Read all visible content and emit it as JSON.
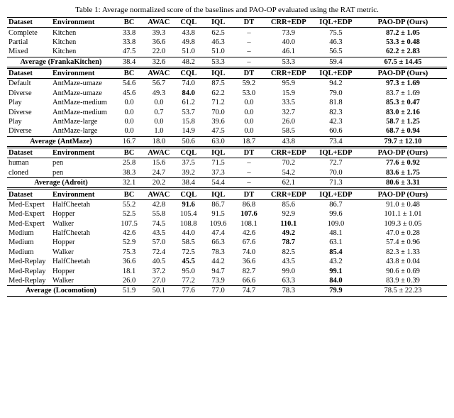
{
  "caption": "Table 1: Average normalized score of the baselines and PAO-OP evaluated using the RAT metric.",
  "headers": [
    "Dataset",
    "Environment",
    "BC",
    "AWAC",
    "CQL",
    "IQL",
    "DT",
    "CRR+EDP",
    "IQL+EDP",
    "PAO-DP (Ours)"
  ],
  "sections": [
    {
      "rows": [
        {
          "cells": [
            {
              "t": "Complete"
            },
            {
              "t": "Kitchen"
            },
            {
              "t": "33.8"
            },
            {
              "t": "39.3"
            },
            {
              "t": "43.8"
            },
            {
              "t": "62.5"
            },
            {
              "t": "–"
            },
            {
              "t": "73.9"
            },
            {
              "t": "75.5"
            },
            {
              "t": "87.2 ± 1.05",
              "b": true
            }
          ]
        },
        {
          "cells": [
            {
              "t": "Partial"
            },
            {
              "t": "Kitchen"
            },
            {
              "t": "33.8"
            },
            {
              "t": "36.6"
            },
            {
              "t": "49.8"
            },
            {
              "t": "46.3"
            },
            {
              "t": "–"
            },
            {
              "t": "40.0"
            },
            {
              "t": "46.3"
            },
            {
              "t": "53.3 ± 0.48",
              "b": true
            }
          ]
        },
        {
          "cells": [
            {
              "t": "Mixed"
            },
            {
              "t": "Kitchen"
            },
            {
              "t": "47.5"
            },
            {
              "t": "22.0"
            },
            {
              "t": "51.0"
            },
            {
              "t": "51.0"
            },
            {
              "t": "–"
            },
            {
              "t": "46.1"
            },
            {
              "t": "56.5"
            },
            {
              "t": "62.2 ± 2.83",
              "b": true
            }
          ]
        }
      ],
      "average": {
        "label": "Average (FrankaKitchen)",
        "cells": [
          {
            "t": "38.4"
          },
          {
            "t": "32.6"
          },
          {
            "t": "48.2"
          },
          {
            "t": "53.3"
          },
          {
            "t": "–"
          },
          {
            "t": "53.3"
          },
          {
            "t": "59.4"
          },
          {
            "t": "67.5 ± 14.45",
            "b": true
          }
        ]
      }
    },
    {
      "rows": [
        {
          "cells": [
            {
              "t": "Default"
            },
            {
              "t": "AntMaze-umaze"
            },
            {
              "t": "54.6"
            },
            {
              "t": "56.7"
            },
            {
              "t": "74.0"
            },
            {
              "t": "87.5"
            },
            {
              "t": "59.2"
            },
            {
              "t": "95.9"
            },
            {
              "t": "94.2"
            },
            {
              "t": "97.3 ± 1.69",
              "b": true
            }
          ]
        },
        {
          "cells": [
            {
              "t": "Diverse"
            },
            {
              "t": "AntMaze-umaze"
            },
            {
              "t": "45.6"
            },
            {
              "t": "49.3"
            },
            {
              "t": "84.0",
              "b": true
            },
            {
              "t": "62.2"
            },
            {
              "t": "53.0"
            },
            {
              "t": "15.9"
            },
            {
              "t": "79.0"
            },
            {
              "t": "83.7 ± 1.69"
            }
          ]
        },
        {
          "cells": [
            {
              "t": "Play"
            },
            {
              "t": "AntMaze-medium"
            },
            {
              "t": "0.0"
            },
            {
              "t": "0.0"
            },
            {
              "t": "61.2"
            },
            {
              "t": "71.2"
            },
            {
              "t": "0.0"
            },
            {
              "t": "33.5"
            },
            {
              "t": "81.8"
            },
            {
              "t": "85.3 ± 0.47",
              "b": true
            }
          ]
        },
        {
          "cells": [
            {
              "t": "Diverse"
            },
            {
              "t": "AntMaze-medium"
            },
            {
              "t": "0.0"
            },
            {
              "t": "0.7"
            },
            {
              "t": "53.7"
            },
            {
              "t": "70.0"
            },
            {
              "t": "0.0"
            },
            {
              "t": "32.7"
            },
            {
              "t": "82.3"
            },
            {
              "t": "83.0 ± 2.16",
              "b": true
            }
          ]
        },
        {
          "cells": [
            {
              "t": "Play"
            },
            {
              "t": "AntMaze-large"
            },
            {
              "t": "0.0"
            },
            {
              "t": "0.0"
            },
            {
              "t": "15.8"
            },
            {
              "t": "39.6"
            },
            {
              "t": "0.0"
            },
            {
              "t": "26.0"
            },
            {
              "t": "42.3"
            },
            {
              "t": "58.7 ± 1.25",
              "b": true
            }
          ]
        },
        {
          "cells": [
            {
              "t": "Diverse"
            },
            {
              "t": "AntMaze-large"
            },
            {
              "t": "0.0"
            },
            {
              "t": "1.0"
            },
            {
              "t": "14.9"
            },
            {
              "t": "47.5"
            },
            {
              "t": "0.0"
            },
            {
              "t": "58.5"
            },
            {
              "t": "60.6"
            },
            {
              "t": "68.7 ± 0.94",
              "b": true
            }
          ]
        }
      ],
      "average": {
        "label": "Average (AntMaze)",
        "cells": [
          {
            "t": "16.7"
          },
          {
            "t": "18.0"
          },
          {
            "t": "50.6"
          },
          {
            "t": "63.0"
          },
          {
            "t": "18.7"
          },
          {
            "t": "43.8"
          },
          {
            "t": "73.4"
          },
          {
            "t": "79.7 ± 12.10",
            "b": true
          }
        ]
      }
    },
    {
      "rows": [
        {
          "cells": [
            {
              "t": "human"
            },
            {
              "t": "pen"
            },
            {
              "t": "25.8"
            },
            {
              "t": "15.6"
            },
            {
              "t": "37.5"
            },
            {
              "t": "71.5"
            },
            {
              "t": "–"
            },
            {
              "t": "70.2"
            },
            {
              "t": "72.7"
            },
            {
              "t": "77.6 ± 0.92",
              "b": true
            }
          ]
        },
        {
          "cells": [
            {
              "t": "cloned"
            },
            {
              "t": "pen"
            },
            {
              "t": "38.3"
            },
            {
              "t": "24.7"
            },
            {
              "t": "39.2"
            },
            {
              "t": "37.3"
            },
            {
              "t": "–"
            },
            {
              "t": "54.2"
            },
            {
              "t": "70.0"
            },
            {
              "t": "83.6 ± 1.75",
              "b": true
            }
          ]
        }
      ],
      "average": {
        "label": "Average (Adroit)",
        "cells": [
          {
            "t": "32.1"
          },
          {
            "t": "20.2"
          },
          {
            "t": "38.4"
          },
          {
            "t": "54.4"
          },
          {
            "t": "–"
          },
          {
            "t": "62.1"
          },
          {
            "t": "71.3"
          },
          {
            "t": "80.6 ± 3.31",
            "b": true
          }
        ]
      }
    },
    {
      "rows": [
        {
          "cells": [
            {
              "t": "Med-Expert"
            },
            {
              "t": "HalfCheetah"
            },
            {
              "t": "55.2"
            },
            {
              "t": "42.8"
            },
            {
              "t": "91.6",
              "b": true
            },
            {
              "t": "86.7"
            },
            {
              "t": "86.8"
            },
            {
              "t": "85.6"
            },
            {
              "t": "86.7"
            },
            {
              "t": "91.0 ± 0.48"
            }
          ]
        },
        {
          "cells": [
            {
              "t": "Med-Expert"
            },
            {
              "t": "Hopper"
            },
            {
              "t": "52.5"
            },
            {
              "t": "55.8"
            },
            {
              "t": "105.4"
            },
            {
              "t": "91.5"
            },
            {
              "t": "107.6",
              "b": true
            },
            {
              "t": "92.9"
            },
            {
              "t": "99.6"
            },
            {
              "t": "101.1 ± 1.01"
            }
          ]
        },
        {
          "cells": [
            {
              "t": "Med-Expert"
            },
            {
              "t": "Walker"
            },
            {
              "t": "107.5"
            },
            {
              "t": "74.5"
            },
            {
              "t": "108.8"
            },
            {
              "t": "109.6"
            },
            {
              "t": "108.1"
            },
            {
              "t": "110.1",
              "b": true
            },
            {
              "t": "109.0"
            },
            {
              "t": "109.3 ± 0.05"
            }
          ]
        },
        {
          "cells": [
            {
              "t": "Medium"
            },
            {
              "t": "HalfCheetah"
            },
            {
              "t": "42.6"
            },
            {
              "t": "43.5"
            },
            {
              "t": "44.0"
            },
            {
              "t": "47.4"
            },
            {
              "t": "42.6"
            },
            {
              "t": "49.2",
              "b": true
            },
            {
              "t": "48.1"
            },
            {
              "t": "47.0 ± 0.28"
            }
          ]
        },
        {
          "cells": [
            {
              "t": "Medium"
            },
            {
              "t": "Hopper"
            },
            {
              "t": "52.9"
            },
            {
              "t": "57.0"
            },
            {
              "t": "58.5"
            },
            {
              "t": "66.3"
            },
            {
              "t": "67.6"
            },
            {
              "t": "78.7",
              "b": true
            },
            {
              "t": "63.1"
            },
            {
              "t": "57.4 ± 0.96"
            }
          ]
        },
        {
          "cells": [
            {
              "t": "Medium"
            },
            {
              "t": "Walker"
            },
            {
              "t": "75.3"
            },
            {
              "t": "72.4"
            },
            {
              "t": "72.5"
            },
            {
              "t": "78.3"
            },
            {
              "t": "74.0"
            },
            {
              "t": "82.5"
            },
            {
              "t": "85.4",
              "b": true
            },
            {
              "t": "82.3 ± 1.33"
            }
          ]
        },
        {
          "cells": [
            {
              "t": "Med-Replay"
            },
            {
              "t": "HalfCheetah"
            },
            {
              "t": "36.6"
            },
            {
              "t": "40.5"
            },
            {
              "t": "45.5",
              "b": true
            },
            {
              "t": "44.2"
            },
            {
              "t": "36.6"
            },
            {
              "t": "43.5"
            },
            {
              "t": "43.2"
            },
            {
              "t": "43.8 ± 0.04"
            }
          ]
        },
        {
          "cells": [
            {
              "t": "Med-Replay"
            },
            {
              "t": "Hopper"
            },
            {
              "t": "18.1"
            },
            {
              "t": "37.2"
            },
            {
              "t": "95.0"
            },
            {
              "t": "94.7"
            },
            {
              "t": "82.7"
            },
            {
              "t": "99.0"
            },
            {
              "t": "99.1",
              "b": true
            },
            {
              "t": "90.6 ± 0.69"
            }
          ]
        },
        {
          "cells": [
            {
              "t": "Med-Replay"
            },
            {
              "t": "Walker"
            },
            {
              "t": "26.0"
            },
            {
              "t": "27.0"
            },
            {
              "t": "77.2"
            },
            {
              "t": "73.9"
            },
            {
              "t": "66.6"
            },
            {
              "t": "63.3"
            },
            {
              "t": "84.0",
              "b": true
            },
            {
              "t": "83.9 ± 0.39"
            }
          ]
        }
      ],
      "average": {
        "label": "Average (Locomotion)",
        "cells": [
          {
            "t": "51.9"
          },
          {
            "t": "50.1"
          },
          {
            "t": "77.6"
          },
          {
            "t": "77.0"
          },
          {
            "t": "74.7"
          },
          {
            "t": "78.3"
          },
          {
            "t": "79.9",
            "b": true
          },
          {
            "t": "78.5 ± 22.23"
          }
        ]
      }
    }
  ]
}
